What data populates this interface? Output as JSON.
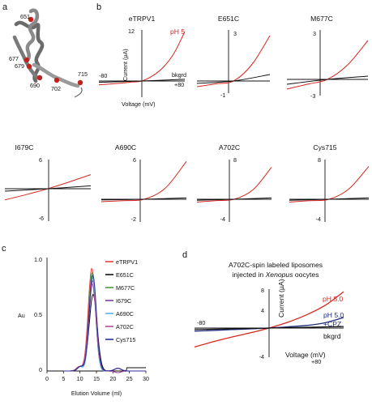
{
  "panel_labels": {
    "a": "a",
    "b": "b",
    "c": "c",
    "d": "d"
  },
  "structure_labels": [
    "651",
    "677",
    "679",
    "690",
    "702",
    "715"
  ],
  "colors": {
    "red": "#d7261e",
    "black": "#111111",
    "navy": "#1f2a7a"
  },
  "chart_data": [
    {
      "type": "line",
      "panel": "b",
      "title": "eTRPV1",
      "ylabel": "Current (µA)",
      "xlabel": "Voltage (mV)",
      "ytick_top": "12",
      "xtick_left": "-80",
      "xtick_right": "+80",
      "ylim": [
        -4,
        12
      ],
      "xlim": [
        -80,
        80
      ],
      "series": [
        {
          "name": "pH 5",
          "color": "#d7261e",
          "x": [
            -80,
            -60,
            -40,
            -20,
            0,
            20,
            40,
            60,
            80
          ],
          "y": [
            -0.9,
            -0.7,
            -0.5,
            -0.25,
            0,
            1.2,
            3.2,
            6.5,
            11.5
          ]
        },
        {
          "name": "bkgrd",
          "color": "#111111",
          "x": [
            -80,
            0,
            80
          ],
          "y": [
            -0.3,
            0,
            0.4
          ]
        }
      ]
    },
    {
      "type": "line",
      "panel": "b",
      "title": "E651C",
      "ytick_top": "3",
      "ytick_bottom": "-1",
      "ylim": [
        -1,
        3
      ],
      "xlim": [
        -80,
        80
      ],
      "series": [
        {
          "name": "",
          "color": "#d7261e",
          "x": [
            -80,
            -40,
            0,
            40,
            80
          ],
          "y": [
            -0.35,
            -0.18,
            0,
            1.0,
            2.8
          ]
        },
        {
          "name": "",
          "color": "#111111",
          "x": [
            -80,
            0,
            80
          ],
          "y": [
            -0.15,
            0,
            0.4
          ]
        }
      ]
    },
    {
      "type": "line",
      "panel": "b",
      "title": "M677C",
      "ytick_top": "3",
      "ytick_bottom": "-3",
      "ylim": [
        -3,
        3
      ],
      "xlim": [
        -80,
        80
      ],
      "series": [
        {
          "name": "",
          "color": "#d7261e",
          "x": [
            -80,
            -40,
            0,
            40,
            80
          ],
          "y": [
            -0.6,
            -0.3,
            0,
            0.9,
            2.4
          ]
        },
        {
          "name": "",
          "color": "#111111",
          "x": [
            -80,
            0,
            80
          ],
          "y": [
            -0.3,
            0,
            0.2
          ]
        }
      ]
    },
    {
      "type": "line",
      "panel": "b",
      "title": "I679C",
      "ytick_top": "6",
      "ytick_bottom": "-6",
      "ylim": [
        -6,
        6
      ],
      "xlim": [
        -80,
        80
      ],
      "series": [
        {
          "name": "",
          "color": "#d7261e",
          "x": [
            -80,
            -40,
            0,
            40,
            80
          ],
          "y": [
            -2.3,
            -1.2,
            0,
            1.4,
            2.9
          ]
        },
        {
          "name": "",
          "color": "#111111",
          "x": [
            -80,
            0,
            80
          ],
          "y": [
            -0.5,
            0,
            0.6
          ]
        }
      ]
    },
    {
      "type": "line",
      "panel": "b",
      "title": "A690C",
      "ytick_top": "6",
      "ytick_bottom": "-2",
      "ylim": [
        -2,
        6
      ],
      "xlim": [
        -80,
        80
      ],
      "series": [
        {
          "name": "",
          "color": "#d7261e",
          "x": [
            -80,
            -40,
            0,
            40,
            80
          ],
          "y": [
            -0.35,
            -0.2,
            0,
            1.6,
            5.5
          ]
        },
        {
          "name": "",
          "color": "#111111",
          "x": [
            -80,
            0,
            80
          ],
          "y": [
            -0.1,
            0,
            0.2
          ]
        }
      ]
    },
    {
      "type": "line",
      "panel": "b",
      "title": "A702C",
      "ytick_top": "8",
      "ytick_bottom": "-4",
      "ylim": [
        -4,
        8
      ],
      "xlim": [
        -80,
        80
      ],
      "series": [
        {
          "name": "",
          "color": "#d7261e",
          "x": [
            -80,
            -40,
            0,
            40,
            80
          ],
          "y": [
            -0.6,
            -0.3,
            0,
            2.0,
            6.8
          ]
        },
        {
          "name": "",
          "color": "#111111",
          "x": [
            -80,
            0,
            80
          ],
          "y": [
            -0.2,
            0,
            0.3
          ]
        }
      ]
    },
    {
      "type": "line",
      "panel": "b",
      "title": "Cys715",
      "ytick_top": "8",
      "ytick_bottom": "-4",
      "ylim": [
        -4,
        8
      ],
      "xlim": [
        -80,
        80
      ],
      "series": [
        {
          "name": "",
          "color": "#d7261e",
          "x": [
            -80,
            -40,
            0,
            40,
            80
          ],
          "y": [
            -0.6,
            -0.3,
            0,
            2.2,
            7.0
          ]
        },
        {
          "name": "",
          "color": "#111111",
          "x": [
            -80,
            0,
            80
          ],
          "y": [
            -0.2,
            0,
            0.3
          ]
        }
      ]
    },
    {
      "type": "line",
      "panel": "c",
      "xlabel": "Elution Volume (ml)",
      "ylabel": "Au",
      "xlim": [
        0,
        30
      ],
      "ylim": [
        0,
        1.0
      ],
      "xticks": [
        "0",
        "5",
        "10",
        "15",
        "20",
        "25",
        "30"
      ],
      "yticks": [
        "0",
        "0.5",
        "1.0"
      ],
      "legend_position": "top-right",
      "series": [
        {
          "name": "eTRPV1",
          "color": "#e8413c",
          "peak": 13.6,
          "height": 0.94,
          "width": 1.1
        },
        {
          "name": "E651C",
          "color": "#111111",
          "peak": 14.0,
          "height": 0.7,
          "width": 1.2
        },
        {
          "name": "M677C",
          "color": "#4e9a3a",
          "peak": 13.7,
          "height": 0.9,
          "width": 1.05
        },
        {
          "name": "I679C",
          "color": "#7b3fa0",
          "peak": 13.9,
          "height": 0.83,
          "width": 1.1
        },
        {
          "name": "A690C",
          "color": "#5bb5e6",
          "peak": 13.8,
          "height": 0.86,
          "width": 1.0
        },
        {
          "name": "A702C",
          "color": "#b54a9c",
          "peak": 13.7,
          "height": 0.8,
          "width": 1.15
        },
        {
          "name": "Cys715",
          "color": "#2d2f9a",
          "peak": 13.9,
          "height": 0.88,
          "width": 1.1
        }
      ]
    },
    {
      "type": "line",
      "panel": "d",
      "title": "A702C-spin labeled liposomes",
      "subtitle_prefix": "injected in ",
      "subtitle_italic": "Xenopus",
      "subtitle_suffix": " oocytes",
      "ylabel": "Current (µA)",
      "xlabel": "Voltage (mV)",
      "ytick_top": "8",
      "ytick_mid": "4",
      "ytick_bottom": "-4",
      "xtick_left": "-80",
      "xtick_right": "+80",
      "ylim": [
        -4,
        8
      ],
      "xlim": [
        -80,
        80
      ],
      "series": [
        {
          "name": "pH 5.0",
          "color": "#d7261e",
          "x": [
            -80,
            -60,
            -40,
            -20,
            0,
            20,
            40,
            60,
            80
          ],
          "y": [
            -3.6,
            -2.6,
            -1.7,
            -0.9,
            0,
            1.1,
            2.5,
            4.3,
            6.9
          ]
        },
        {
          "name": "pH 5.0",
          "name2": "+CPZ",
          "color": "#1f2a7a",
          "x": [
            -80,
            -40,
            0,
            40,
            60,
            80
          ],
          "y": [
            -0.6,
            -0.3,
            0,
            0.5,
            1.0,
            2.0
          ]
        },
        {
          "name": "bkgrd",
          "color": "#111111",
          "x": [
            -80,
            0,
            80
          ],
          "y": [
            -0.3,
            0,
            0.3
          ]
        }
      ]
    }
  ]
}
